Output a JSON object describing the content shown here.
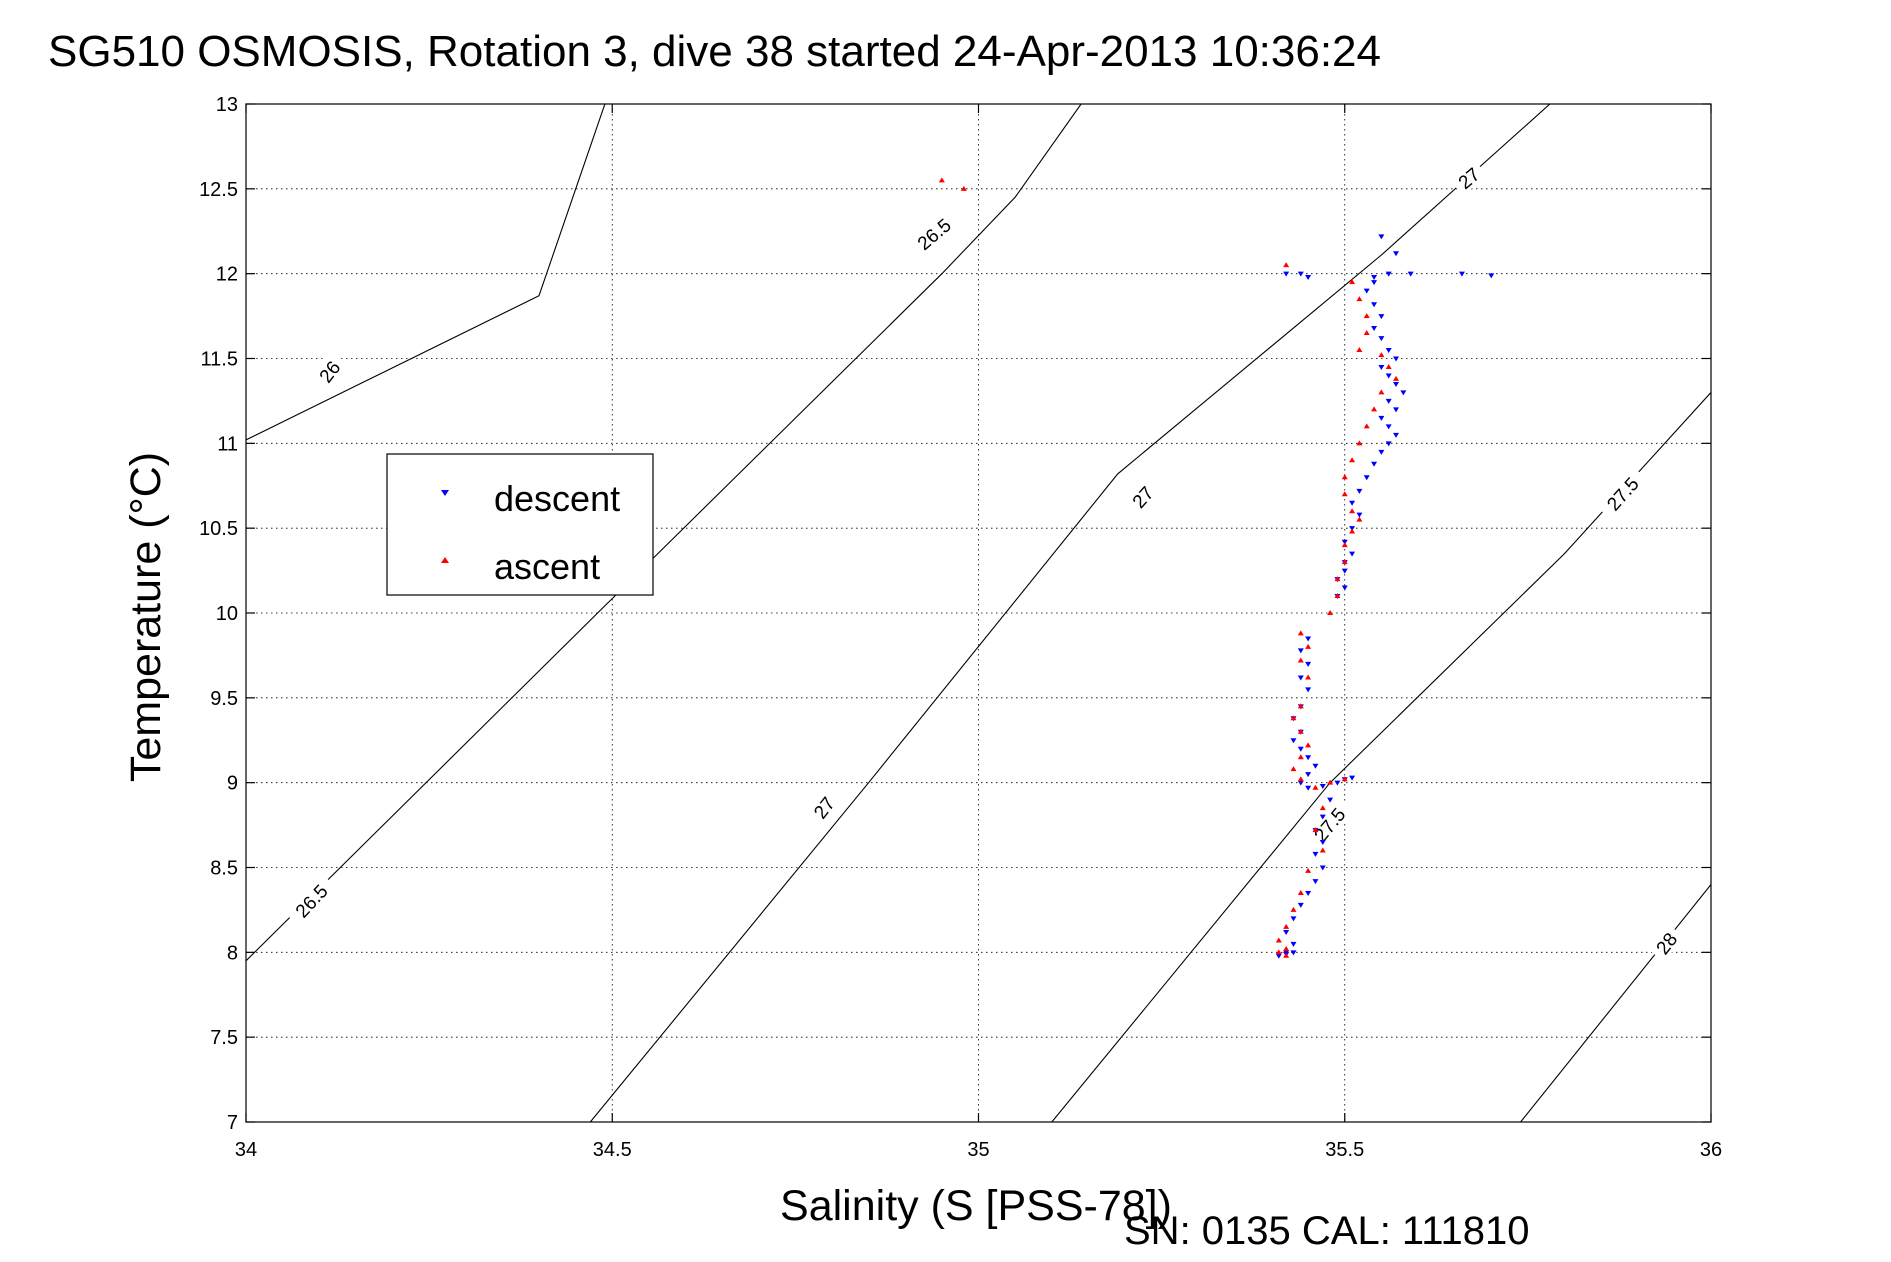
{
  "chart_data": {
    "type": "scatter",
    "title": "SG510 OSMOSIS, Rotation 3, dive 38 started 24-Apr-2013 10:36:24",
    "xlabel": "Salinity (S [PSS-78])",
    "ylabel": "Temperature (°C)",
    "xlim": [
      34,
      36
    ],
    "ylim": [
      7,
      13
    ],
    "xticks": [
      "34",
      "34.5",
      "35",
      "35.5",
      "36"
    ],
    "yticks": [
      "7",
      "7.5",
      "8",
      "8.5",
      "9",
      "9.5",
      "10",
      "10.5",
      "11",
      "11.5",
      "12",
      "12.5",
      "13"
    ],
    "grid": true,
    "legend_position": "left",
    "footnote": "SN: 0135  CAL: 111810",
    "density_contours": {
      "levels": [
        26,
        26.5,
        27,
        27.5,
        28
      ],
      "lines": [
        {
          "level": 26,
          "label": "26",
          "points": [
            [
              34.0,
              11.02
            ],
            [
              34.4,
              11.87
            ],
            [
              34.49,
              13.0
            ]
          ]
        },
        {
          "level": 26.5,
          "label": "26.5",
          "points": [
            [
              34.0,
              7.95
            ],
            [
              34.48,
              10.0
            ],
            [
              34.95,
              12.0
            ],
            [
              35.05,
              12.45
            ],
            [
              35.14,
              13.0
            ]
          ]
        },
        {
          "level": 27,
          "label": "27",
          "points": [
            [
              34.47,
              7.0
            ],
            [
              34.85,
              9.0
            ],
            [
              35.19,
              10.82
            ],
            [
              35.55,
              12.11
            ],
            [
              35.78,
              13.0
            ]
          ]
        },
        {
          "level": 27.5,
          "label": "27.5",
          "points": [
            [
              35.1,
              7.0
            ],
            [
              35.48,
              9.0
            ],
            [
              35.8,
              10.35
            ],
            [
              36.0,
              11.3
            ]
          ]
        },
        {
          "level": 28,
          "label": "28",
          "points": [
            [
              35.74,
              7.0
            ],
            [
              36.0,
              8.4
            ]
          ]
        }
      ],
      "label_positions": [
        {
          "text": "26",
          "x": 34.115,
          "y": 11.42,
          "angle": -52
        },
        {
          "text": "26.5",
          "x": 34.09,
          "y": 8.3,
          "angle": -47
        },
        {
          "text": "26.5",
          "x": 34.94,
          "y": 12.23,
          "angle": -40
        },
        {
          "text": "27",
          "x": 34.79,
          "y": 8.85,
          "angle": -52
        },
        {
          "text": "27",
          "x": 35.225,
          "y": 10.68,
          "angle": -48
        },
        {
          "text": "27",
          "x": 35.67,
          "y": 12.56,
          "angle": -40
        },
        {
          "text": "27.5",
          "x": 35.48,
          "y": 8.75,
          "angle": -50
        },
        {
          "text": "27.5",
          "x": 35.88,
          "y": 10.7,
          "angle": -48
        },
        {
          "text": "28",
          "x": 35.94,
          "y": 8.05,
          "angle": -52
        }
      ]
    },
    "series": [
      {
        "name": "descent",
        "color": "#0000ff",
        "marker": "triangle-down",
        "x": [
          35.55,
          35.57,
          35.54,
          35.53,
          35.54,
          35.55,
          35.54,
          35.55,
          35.56,
          35.57,
          35.55,
          35.56,
          35.57,
          35.58,
          35.56,
          35.57,
          35.55,
          35.56,
          35.57,
          35.56,
          35.55,
          35.54,
          35.53,
          35.52,
          35.51,
          35.52,
          35.51,
          35.5,
          35.51,
          35.5,
          35.5,
          35.49,
          35.5,
          35.49,
          35.45,
          35.44,
          35.45,
          35.44,
          35.45,
          35.44,
          35.43,
          35.44,
          35.43,
          35.44,
          35.45,
          35.46,
          35.45,
          35.44,
          35.45,
          35.47,
          35.49,
          35.5,
          35.51,
          35.48,
          35.47,
          35.46,
          35.47,
          35.46,
          35.47,
          35.46,
          35.45,
          35.44,
          35.43,
          35.42,
          35.43,
          35.42,
          35.41,
          35.42,
          35.43,
          35.54,
          35.56,
          35.59,
          35.42,
          35.44,
          35.66,
          35.7,
          35.45
        ],
        "y": [
          12.22,
          12.12,
          11.95,
          11.9,
          11.82,
          11.75,
          11.68,
          11.62,
          11.55,
          11.5,
          11.45,
          11.4,
          11.35,
          11.3,
          11.25,
          11.2,
          11.15,
          11.1,
          11.05,
          11.0,
          10.95,
          10.88,
          10.8,
          10.72,
          10.65,
          10.58,
          10.5,
          10.42,
          10.35,
          10.3,
          10.25,
          10.2,
          10.15,
          10.1,
          9.85,
          9.78,
          9.7,
          9.62,
          9.55,
          9.45,
          9.38,
          9.3,
          9.25,
          9.2,
          9.15,
          9.1,
          9.05,
          9.0,
          8.97,
          8.98,
          9.0,
          9.02,
          9.03,
          8.9,
          8.8,
          8.72,
          8.65,
          8.58,
          8.5,
          8.42,
          8.35,
          8.28,
          8.2,
          8.12,
          8.05,
          8.0,
          7.98,
          7.99,
          8.0,
          11.98,
          12.0,
          12.0,
          12.0,
          12.0,
          12.0,
          11.99,
          11.98
        ]
      },
      {
        "name": "ascent",
        "color": "#ff0000",
        "marker": "triangle-up",
        "x": [
          35.51,
          35.52,
          35.53,
          35.53,
          35.52,
          35.55,
          35.56,
          35.57,
          35.55,
          35.54,
          35.53,
          35.52,
          35.51,
          35.5,
          35.5,
          35.51,
          35.52,
          35.51,
          35.5,
          35.5,
          35.49,
          35.49,
          35.48,
          35.44,
          35.45,
          35.44,
          35.45,
          35.44,
          35.43,
          35.44,
          35.45,
          35.44,
          35.43,
          35.44,
          35.46,
          35.48,
          35.5,
          35.47,
          35.46,
          35.47,
          35.45,
          35.44,
          35.43,
          35.42,
          35.41,
          35.42,
          35.41,
          35.42,
          34.95,
          34.98,
          35.42
        ],
        "y": [
          11.95,
          11.85,
          11.75,
          11.65,
          11.55,
          11.52,
          11.45,
          11.38,
          11.3,
          11.2,
          11.1,
          11.0,
          10.9,
          10.8,
          10.7,
          10.6,
          10.55,
          10.48,
          10.4,
          10.3,
          10.2,
          10.1,
          10.0,
          9.88,
          9.8,
          9.72,
          9.62,
          9.45,
          9.38,
          9.3,
          9.22,
          9.15,
          9.08,
          9.02,
          8.97,
          9.0,
          9.02,
          8.85,
          8.72,
          8.6,
          8.48,
          8.35,
          8.25,
          8.15,
          8.07,
          8.02,
          8.0,
          7.98,
          12.55,
          12.5,
          12.05
        ]
      }
    ]
  }
}
